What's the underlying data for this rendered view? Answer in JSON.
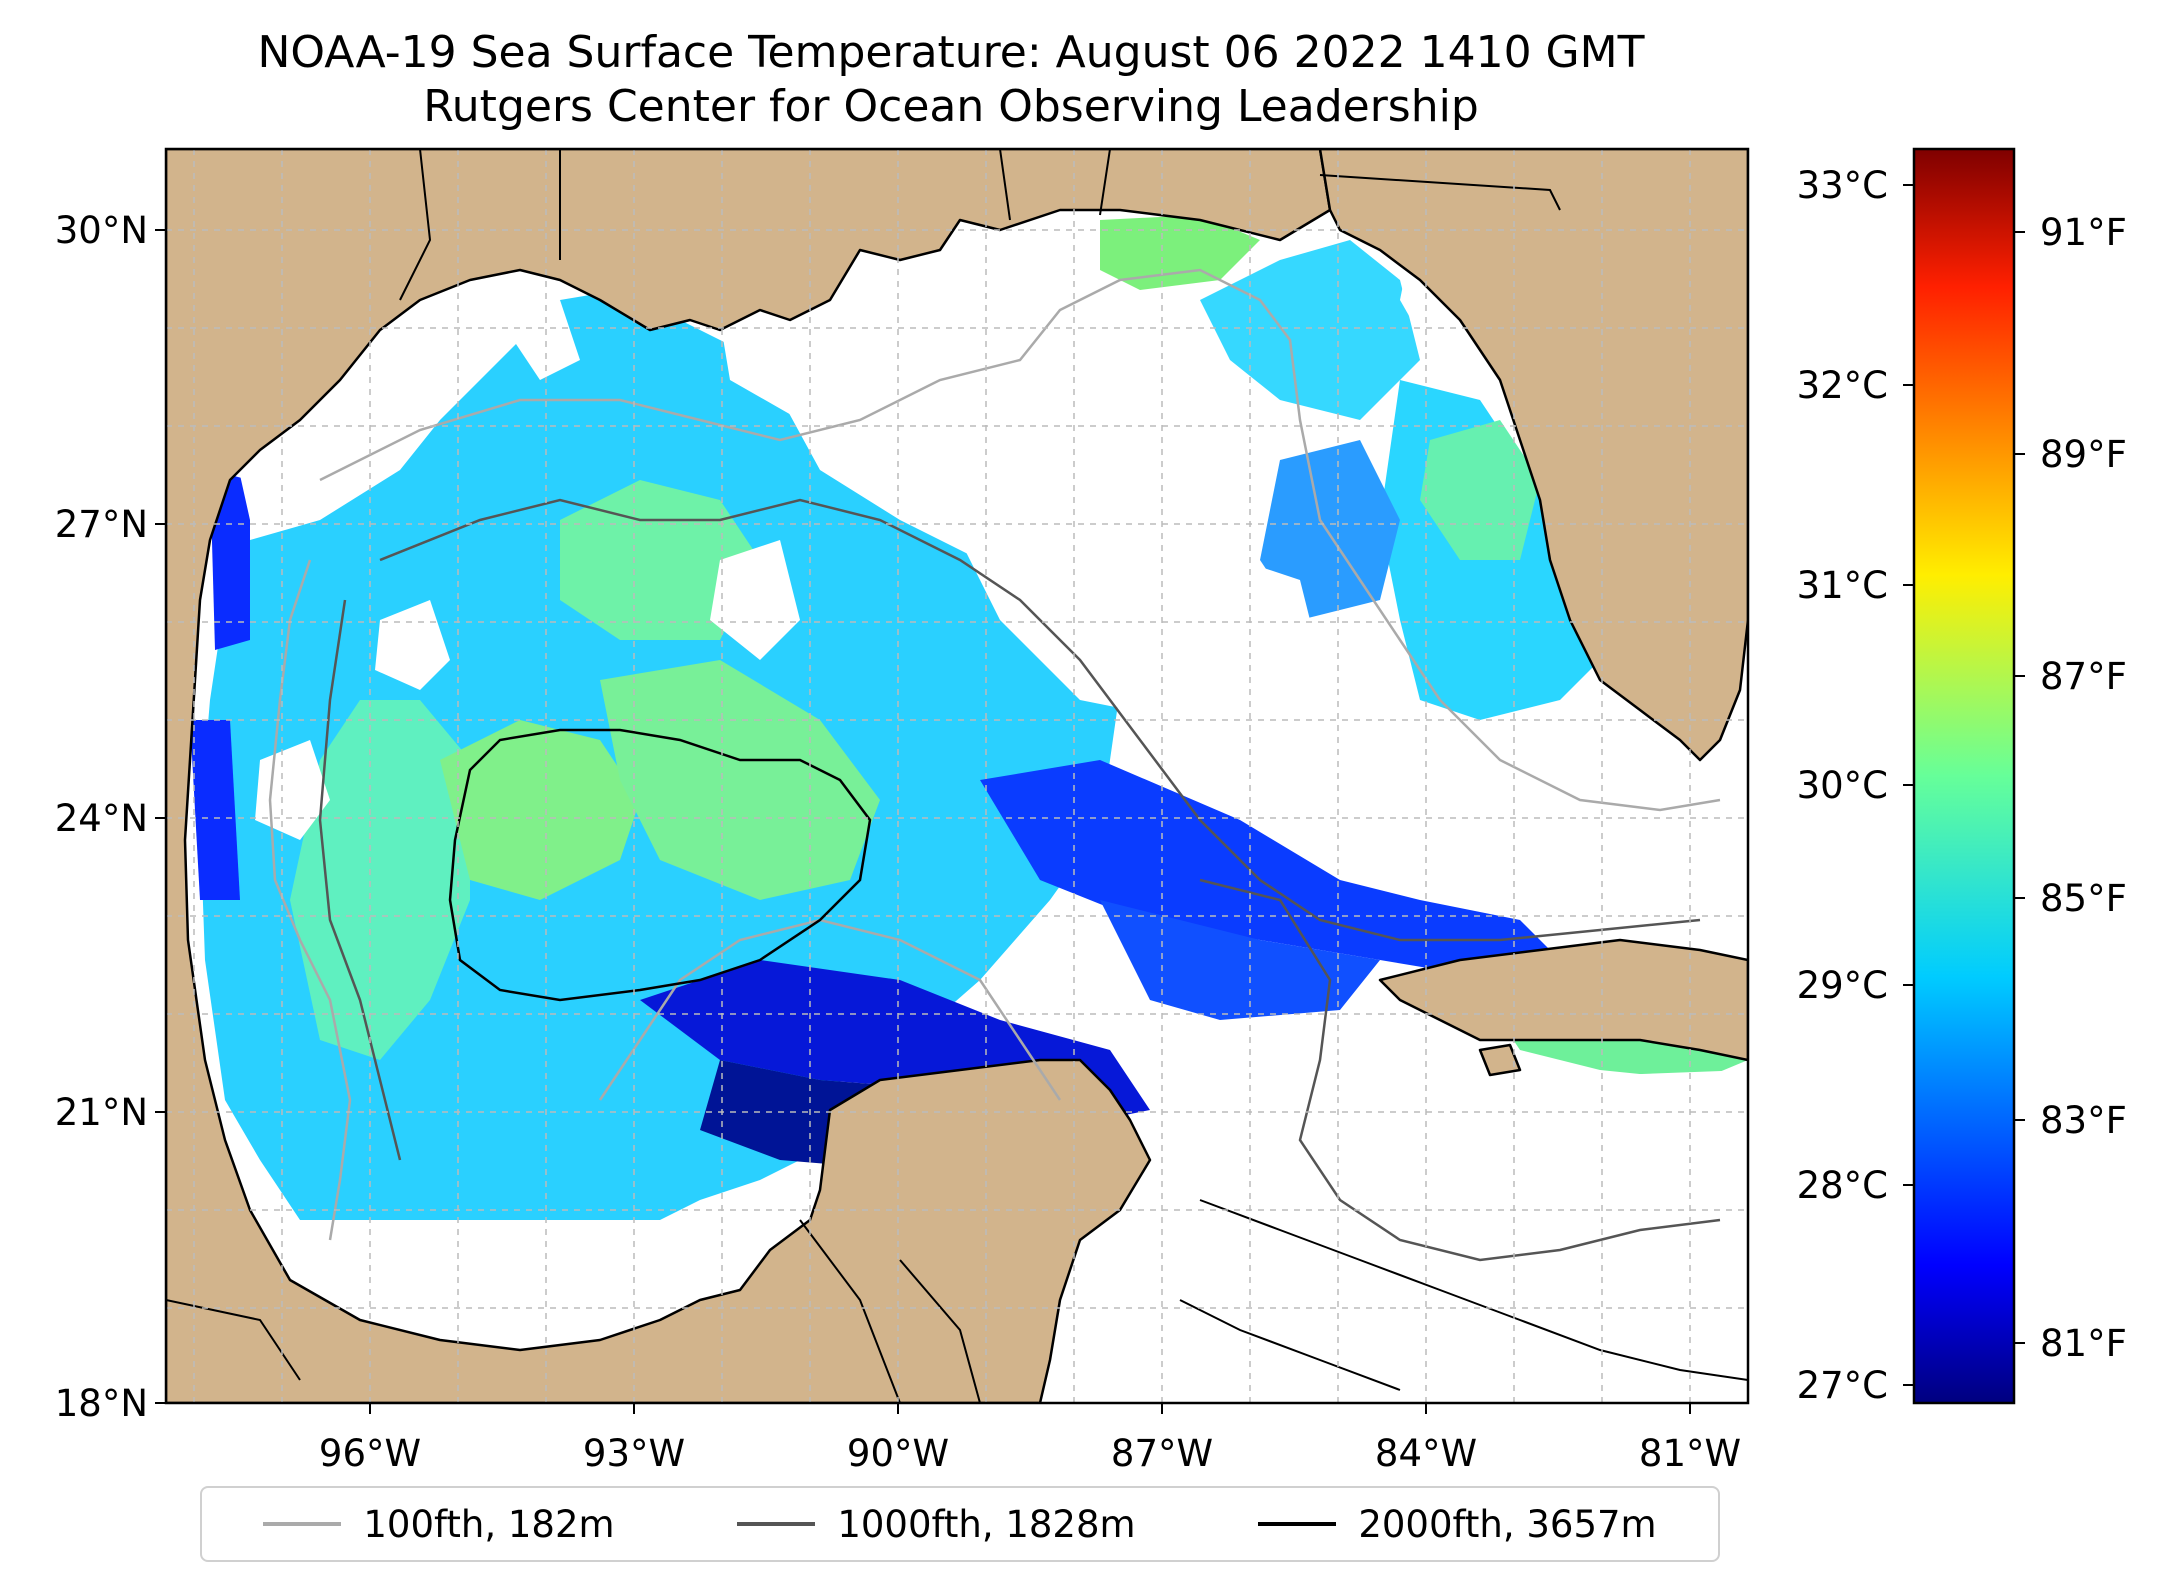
{
  "title_line1": "NOAA-19 Sea Surface Temperature: August 06 2022 1410 GMT",
  "title_line2": "Rutgers Center for Ocean Observing Leadership",
  "map": {
    "lon_range": [
      -98,
      -80
    ],
    "lat_range": [
      18,
      31
    ],
    "lon_ticks": [
      "96°W",
      "93°W",
      "90°W",
      "87°W",
      "84°W",
      "81°W"
    ],
    "lat_ticks": [
      "18°N",
      "21°N",
      "24°N",
      "27°N",
      "30°N"
    ],
    "colors": {
      "land": "#d2b48c",
      "no_data": "#ffffff",
      "gridline": "#bbbbbb"
    }
  },
  "colorbar": {
    "colormap": "jet",
    "celsius_labels": [
      "27°C",
      "28°C",
      "29°C",
      "30°C",
      "31°C",
      "32°C",
      "33°C"
    ],
    "fahrenheit_labels": [
      "81°F",
      "83°F",
      "85°F",
      "87°F",
      "89°F",
      "91°F"
    ],
    "range_celsius": [
      26.9,
      33.2
    ]
  },
  "legend": [
    {
      "label": "100fth, 182m",
      "color": "#aaaaaa"
    },
    {
      "label": "1000fth, 1828m",
      "color": "#555555"
    },
    {
      "label": "2000fth, 3657m",
      "color": "#000000"
    }
  ]
}
